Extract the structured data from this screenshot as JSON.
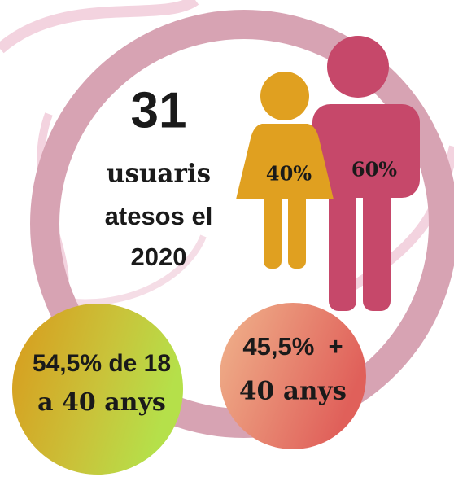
{
  "headline": {
    "number": "31",
    "lines": [
      "usuaris",
      "atesos el",
      "2020"
    ]
  },
  "gender": {
    "women": "40%",
    "men": "60%"
  },
  "age_young": {
    "lines": [
      "54,5% de 18",
      "a 40 anys"
    ]
  },
  "age_old": {
    "lines": [
      "45,5%  +",
      "40 anys"
    ]
  }
}
